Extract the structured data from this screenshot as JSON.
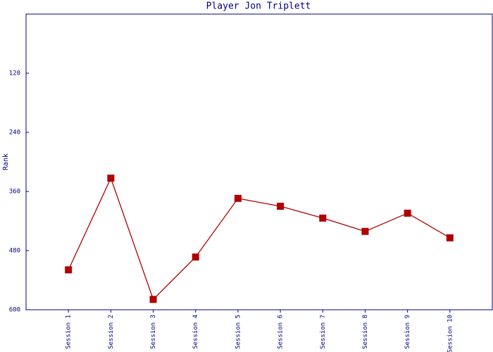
{
  "chart_data": {
    "type": "line",
    "title": "Player Jon Triplett",
    "y_label": "Rank",
    "categories": [
      "Session 1",
      "Session 2",
      "Session 3",
      "Session 4",
      "Session 5",
      "Session 6",
      "Session 7",
      "Session 8",
      "Session 9",
      "Session 10"
    ],
    "series": [
      {
        "name": "Rank",
        "color": "#b00000",
        "values": [
          519,
          333,
          579,
          493,
          374,
          390,
          414,
          441,
          404,
          454
        ]
      }
    ],
    "ylim": [
      0,
      600
    ],
    "y_inverted": true,
    "yticks": [
      120,
      240,
      360,
      480,
      600
    ],
    "grid": false
  }
}
